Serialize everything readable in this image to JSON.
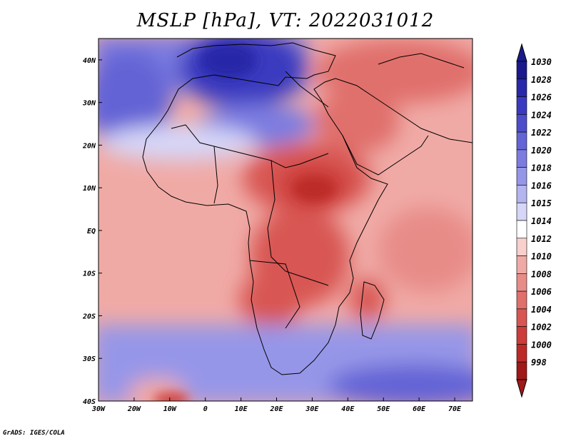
{
  "title": "MSLP [hPa], VT: 2022031012",
  "credit": "GrADS: IGES/COLA",
  "map": {
    "lon_range": [
      -30,
      75
    ],
    "lat_range": [
      -40,
      45
    ],
    "lon_ticks": [
      {
        "value": -30,
        "label": "30W"
      },
      {
        "value": -20,
        "label": "20W"
      },
      {
        "value": -10,
        "label": "10W"
      },
      {
        "value": 0,
        "label": "0"
      },
      {
        "value": 10,
        "label": "10E"
      },
      {
        "value": 20,
        "label": "20E"
      },
      {
        "value": 30,
        "label": "30E"
      },
      {
        "value": 40,
        "label": "40E"
      },
      {
        "value": 50,
        "label": "50E"
      },
      {
        "value": 60,
        "label": "60E"
      },
      {
        "value": 70,
        "label": "70E"
      }
    ],
    "lat_ticks": [
      {
        "value": 40,
        "label": "40N"
      },
      {
        "value": 30,
        "label": "30N"
      },
      {
        "value": 20,
        "label": "20N"
      },
      {
        "value": 10,
        "label": "10N"
      },
      {
        "value": 0,
        "label": "EQ"
      },
      {
        "value": -10,
        "label": "10S"
      },
      {
        "value": -20,
        "label": "20S"
      },
      {
        "value": -30,
        "label": "30S"
      },
      {
        "value": -40,
        "label": "40S"
      }
    ]
  },
  "colorbar": {
    "levels": [
      {
        "label": "1030",
        "color": "#1a1a8c"
      },
      {
        "label": "1028",
        "color": "#2828a8"
      },
      {
        "label": "1026",
        "color": "#3a3ac0"
      },
      {
        "label": "1024",
        "color": "#4d4dcc"
      },
      {
        "label": "1022",
        "color": "#6464d6"
      },
      {
        "label": "1020",
        "color": "#7c7ce0"
      },
      {
        "label": "1018",
        "color": "#9696e8"
      },
      {
        "label": "1016",
        "color": "#b4b4f0"
      },
      {
        "label": "1015",
        "color": "#d6d6f8"
      },
      {
        "label": "1014",
        "color": "#ffffff"
      },
      {
        "label": "1012",
        "color": "#f8d0cc"
      },
      {
        "label": "1010",
        "color": "#f0aaa6"
      },
      {
        "label": "1008",
        "color": "#e88c88"
      },
      {
        "label": "1006",
        "color": "#e0706c"
      },
      {
        "label": "1004",
        "color": "#d85652"
      },
      {
        "label": "1002",
        "color": "#cc3c3a"
      },
      {
        "label": "1000",
        "color": "#bc2a28"
      },
      {
        "label": "998",
        "color": "#a01818"
      }
    ]
  }
}
